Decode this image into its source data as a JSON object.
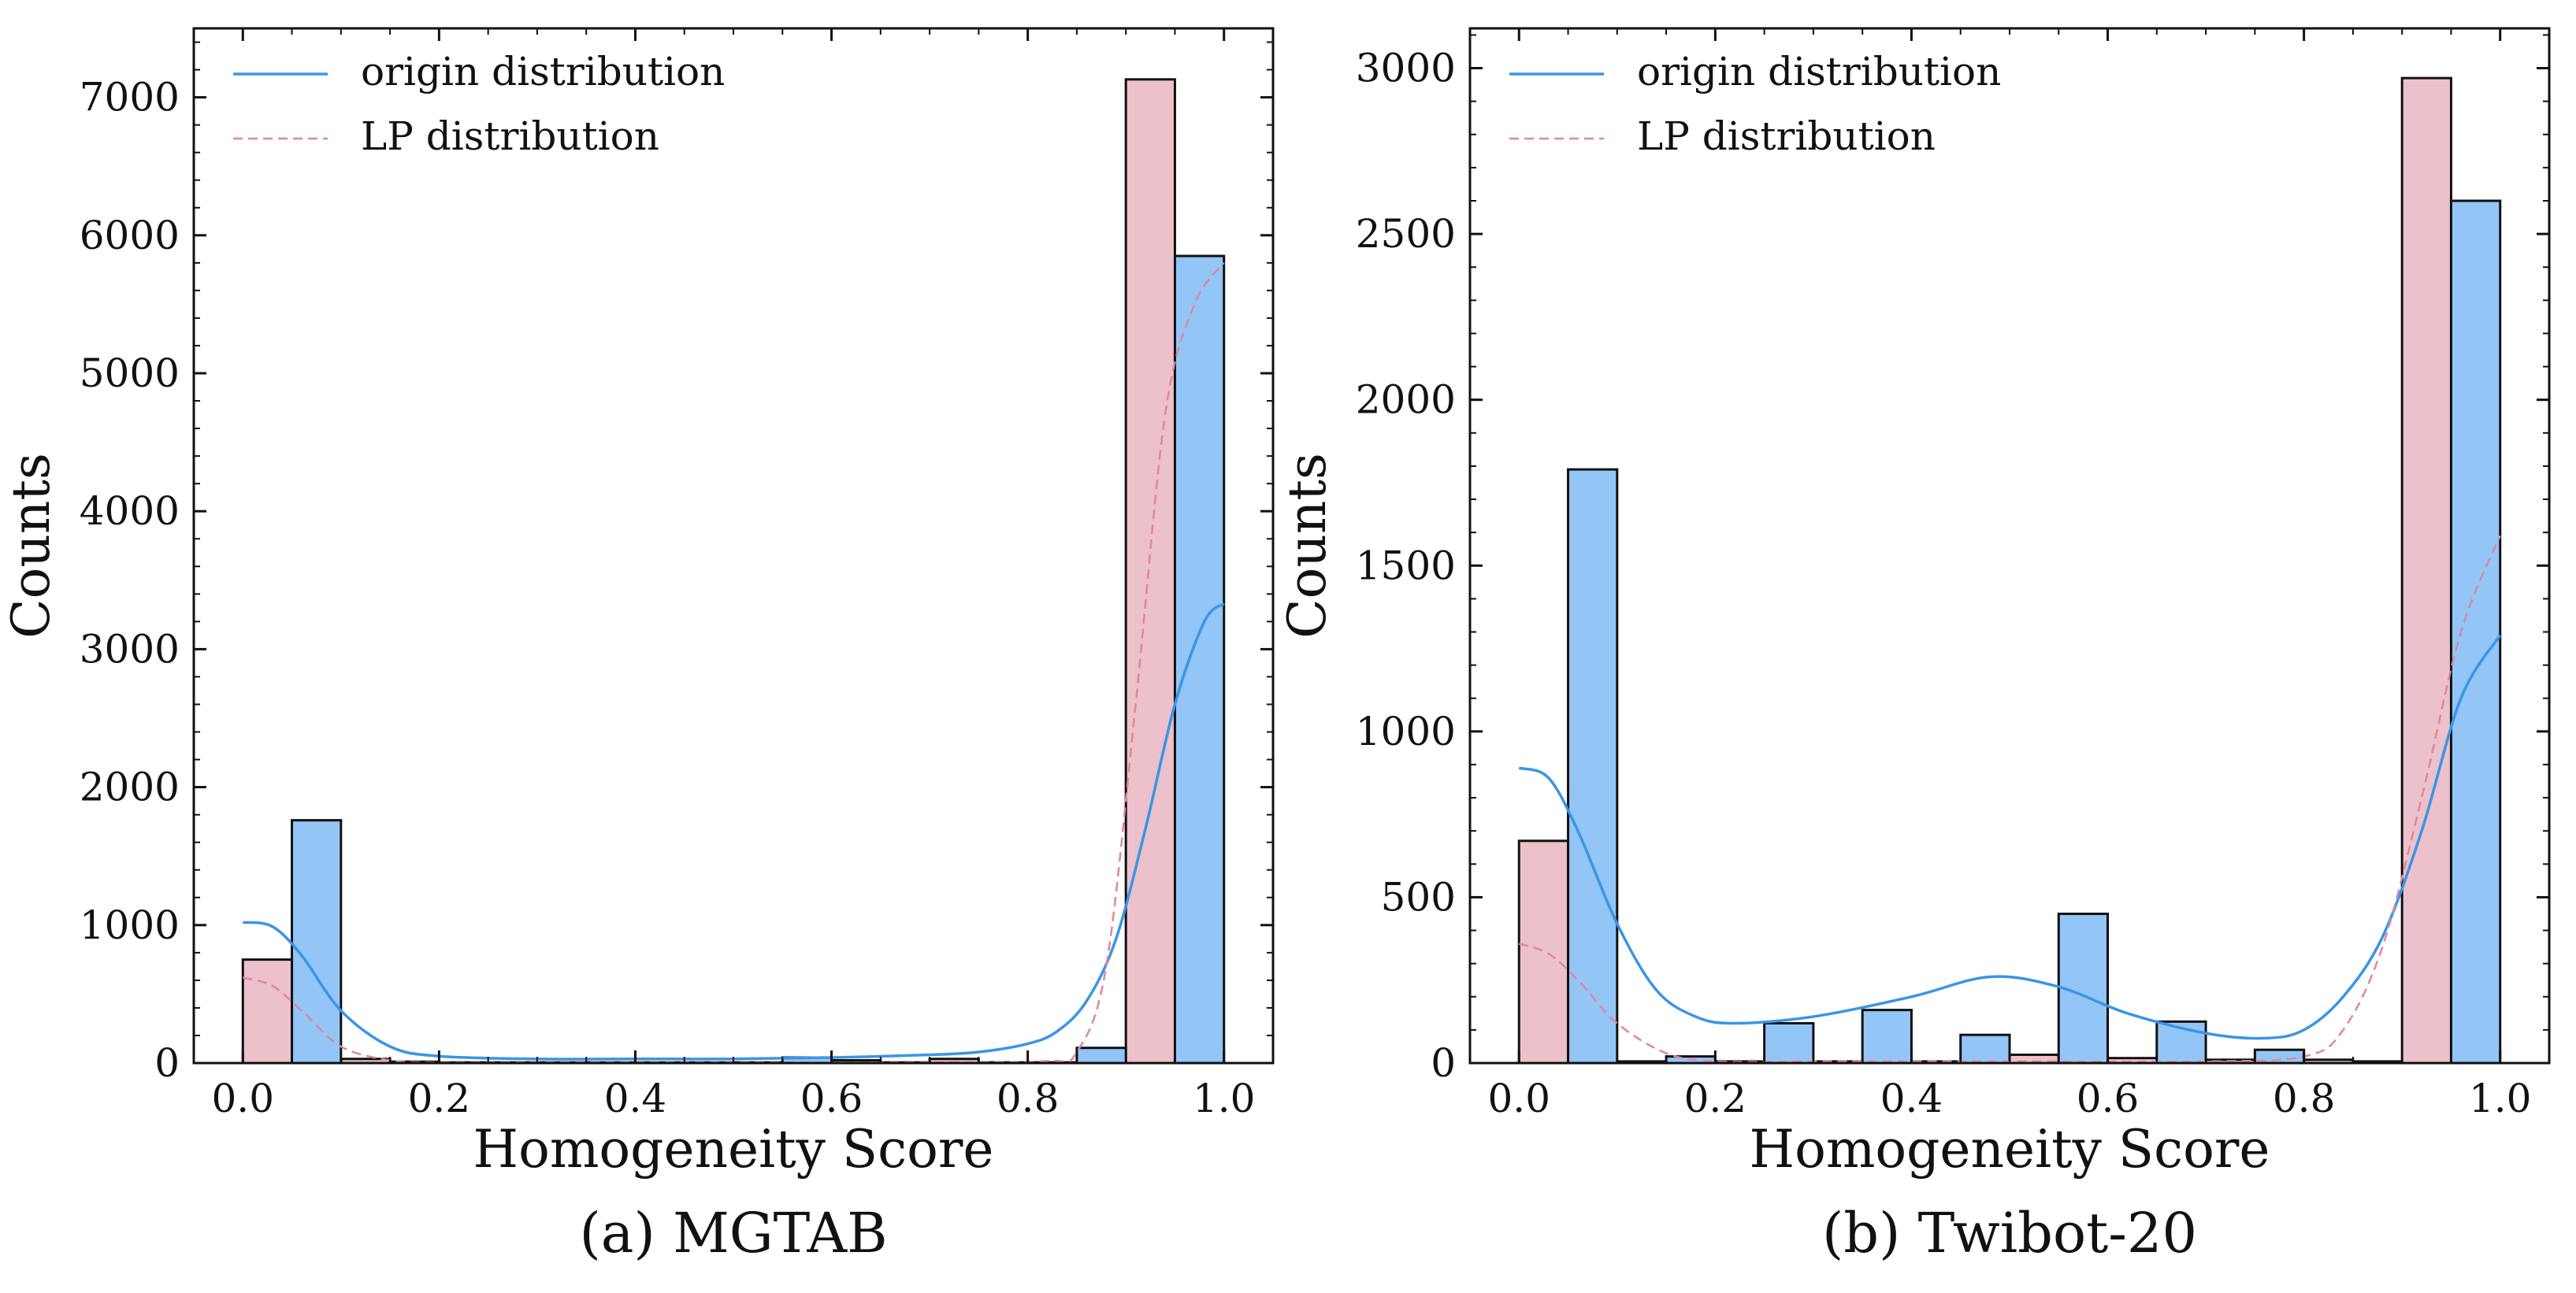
{
  "colors": {
    "origin": "#93c5f7",
    "origin_line": "#3a95e6",
    "lp": "#ecc1cb",
    "lp_line": "#e0879a",
    "edge": "#111111"
  },
  "chart_data": [
    {
      "type": "bar",
      "caption": "(a) MGTAB",
      "xlabel": "Homogeneity Score",
      "ylabel": "Counts",
      "xlim": [
        -0.05,
        1.05
      ],
      "ylim": [
        0,
        7500
      ],
      "xticks": [
        0.0,
        0.2,
        0.4,
        0.6,
        0.8,
        1.0
      ],
      "xtick_labels": [
        "0.0",
        "0.2",
        "0.4",
        "0.6",
        "0.8",
        "1.0"
      ],
      "yticks": [
        0,
        1000,
        2000,
        3000,
        4000,
        5000,
        6000,
        7000
      ],
      "ytick_labels": [
        "0",
        "1000",
        "2000",
        "3000",
        "4000",
        "5000",
        "6000",
        "7000"
      ],
      "bin_edges": [
        0.0,
        0.1,
        0.2,
        0.3,
        0.4,
        0.5,
        0.6,
        0.7,
        0.8,
        0.9,
        1.0
      ],
      "legend": [
        "origin distribution",
        "LP distribution"
      ],
      "series": [
        {
          "name": "LP distribution",
          "values": [
            750,
            30,
            5,
            5,
            5,
            5,
            20,
            30,
            5,
            7130
          ]
        },
        {
          "name": "origin distribution",
          "values": [
            1760,
            10,
            5,
            5,
            5,
            40,
            5,
            5,
            110,
            5850
          ]
        }
      ],
      "kde": [
        {
          "name": "origin distribution",
          "x": [
            0.0,
            0.03,
            0.06,
            0.1,
            0.15,
            0.2,
            0.3,
            0.4,
            0.5,
            0.6,
            0.7,
            0.75,
            0.8,
            0.83,
            0.86,
            0.89,
            0.92,
            0.95,
            0.98,
            1.0
          ],
          "y": [
            1020,
            990,
            780,
            380,
            120,
            50,
            30,
            30,
            30,
            40,
            60,
            80,
            140,
            230,
            450,
            900,
            1700,
            2600,
            3200,
            3330
          ]
        },
        {
          "name": "LP distribution",
          "x": [
            0.0,
            0.03,
            0.06,
            0.1,
            0.15,
            0.2,
            0.3,
            0.5,
            0.7,
            0.82,
            0.85,
            0.88,
            0.91,
            0.94,
            0.97,
            1.0
          ],
          "y": [
            620,
            560,
            380,
            120,
            20,
            5,
            5,
            5,
            5,
            15,
            80,
            700,
            2600,
            4700,
            5500,
            5800
          ]
        }
      ]
    },
    {
      "type": "bar",
      "caption": "(b) Twibot-20",
      "xlabel": "Homogeneity Score",
      "ylabel": "Counts",
      "xlim": [
        -0.05,
        1.05
      ],
      "ylim": [
        0,
        3120
      ],
      "xticks": [
        0.0,
        0.2,
        0.4,
        0.6,
        0.8,
        1.0
      ],
      "xtick_labels": [
        "0.0",
        "0.2",
        "0.4",
        "0.6",
        "0.8",
        "1.0"
      ],
      "yticks": [
        0,
        500,
        1000,
        1500,
        2000,
        2500,
        3000
      ],
      "ytick_labels": [
        "0",
        "500",
        "1000",
        "1500",
        "2000",
        "2500",
        "3000"
      ],
      "bin_edges": [
        0.0,
        0.1,
        0.2,
        0.3,
        0.4,
        0.5,
        0.6,
        0.7,
        0.8,
        0.9,
        1.0
      ],
      "legend": [
        "origin distribution",
        "LP distribution"
      ],
      "series": [
        {
          "name": "LP distribution",
          "values": [
            670,
            5,
            5,
            5,
            5,
            25,
            15,
            10,
            10,
            2970
          ]
        },
        {
          "name": "origin distribution",
          "values": [
            1790,
            20,
            120,
            160,
            85,
            450,
            125,
            40,
            5,
            2600
          ]
        }
      ],
      "kde": [
        {
          "name": "origin distribution",
          "x": [
            0.0,
            0.03,
            0.06,
            0.1,
            0.14,
            0.18,
            0.22,
            0.3,
            0.4,
            0.48,
            0.55,
            0.62,
            0.7,
            0.76,
            0.8,
            0.84,
            0.88,
            0.92,
            0.96,
            1.0
          ],
          "y": [
            890,
            860,
            700,
            420,
            220,
            140,
            120,
            140,
            200,
            260,
            230,
            150,
            90,
            75,
            100,
            200,
            380,
            700,
            1100,
            1290
          ]
        },
        {
          "name": "LP distribution",
          "x": [
            0.0,
            0.03,
            0.06,
            0.1,
            0.15,
            0.2,
            0.3,
            0.5,
            0.7,
            0.8,
            0.84,
            0.88,
            0.92,
            0.96,
            1.0
          ],
          "y": [
            360,
            330,
            250,
            120,
            30,
            5,
            5,
            5,
            5,
            20,
            100,
            350,
            800,
            1300,
            1590
          ]
        }
      ]
    }
  ]
}
